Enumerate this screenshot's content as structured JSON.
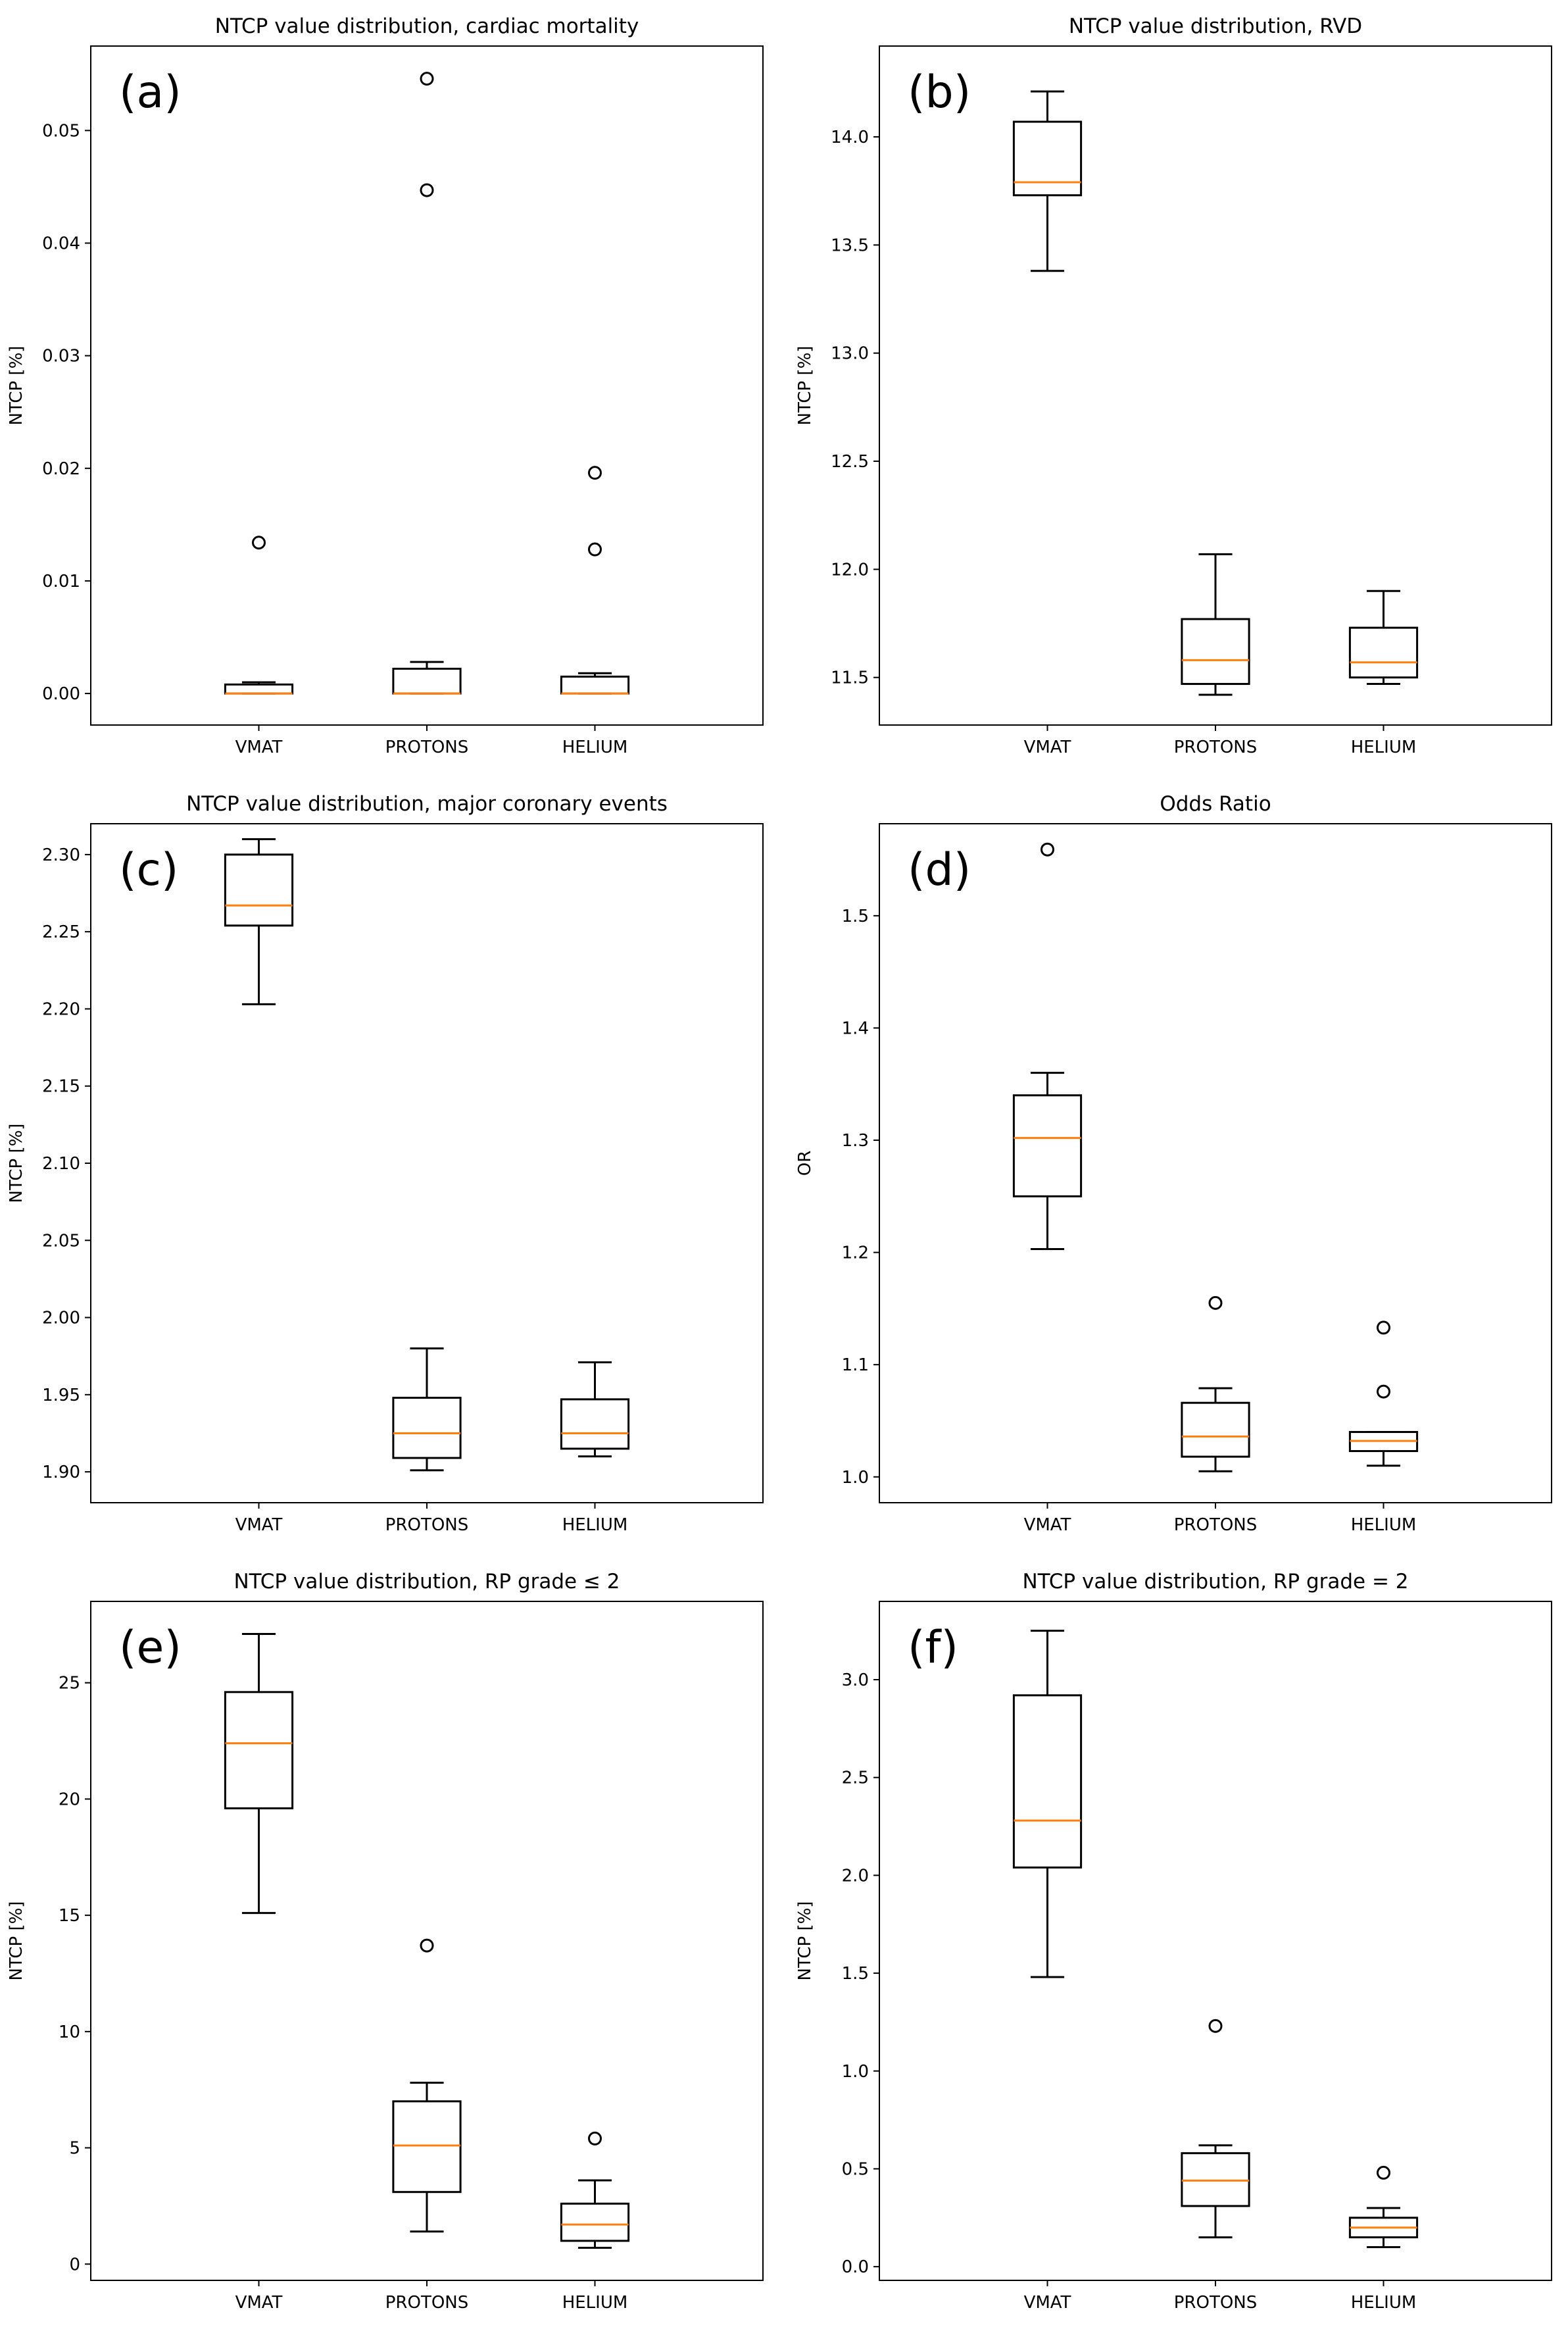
{
  "chart_data": [
    {
      "type": "box",
      "panel_label": "(a)",
      "title": "NTCP value distribution, cardiac mortality",
      "xlabel": "",
      "ylabel": "NTCP [%]",
      "ylim": [
        -0.0028,
        0.0575
      ],
      "yticks": [
        0.0,
        0.01,
        0.02,
        0.03,
        0.04,
        0.05
      ],
      "ytick_labels": [
        "0.00",
        "0.01",
        "0.02",
        "0.03",
        "0.04",
        "0.05"
      ],
      "categories": [
        "VMAT",
        "PROTONS",
        "HELIUM"
      ],
      "boxes": [
        {
          "label": "VMAT",
          "whislo": 0.0,
          "q1": 0.0,
          "med": 0.0,
          "q3": 0.0008,
          "whishi": 0.001,
          "fliers": [
            0.0134
          ]
        },
        {
          "label": "PROTONS",
          "whislo": 0.0,
          "q1": 0.0,
          "med": 0.0,
          "q3": 0.0022,
          "whishi": 0.0028,
          "fliers": [
            0.0546,
            0.0447
          ]
        },
        {
          "label": "HELIUM",
          "whislo": 0.0,
          "q1": 0.0,
          "med": 0.0,
          "q3": 0.0015,
          "whishi": 0.0018,
          "fliers": [
            0.0196,
            0.0128
          ]
        }
      ]
    },
    {
      "type": "box",
      "panel_label": "(b)",
      "title": "NTCP value distribution, RVD",
      "xlabel": "",
      "ylabel": "NTCP [%]",
      "ylim": [
        11.28,
        14.42
      ],
      "yticks": [
        11.5,
        12.0,
        12.5,
        13.0,
        13.5,
        14.0
      ],
      "ytick_labels": [
        "11.5",
        "12.0",
        "12.5",
        "13.0",
        "13.5",
        "14.0"
      ],
      "categories": [
        "VMAT",
        "PROTONS",
        "HELIUM"
      ],
      "boxes": [
        {
          "label": "VMAT",
          "whislo": 13.38,
          "q1": 13.73,
          "med": 13.79,
          "q3": 14.07,
          "whishi": 14.21,
          "fliers": []
        },
        {
          "label": "PROTONS",
          "whislo": 11.42,
          "q1": 11.47,
          "med": 11.58,
          "q3": 11.77,
          "whishi": 12.07,
          "fliers": []
        },
        {
          "label": "HELIUM",
          "whislo": 11.47,
          "q1": 11.5,
          "med": 11.57,
          "q3": 11.73,
          "whishi": 11.9,
          "fliers": []
        }
      ]
    },
    {
      "type": "box",
      "panel_label": "(c)",
      "title": "NTCP value distribution, major coronary events",
      "xlabel": "",
      "ylabel": "NTCP [%]",
      "ylim": [
        1.88,
        2.32
      ],
      "yticks": [
        1.9,
        1.95,
        2.0,
        2.05,
        2.1,
        2.15,
        2.2,
        2.25,
        2.3
      ],
      "ytick_labels": [
        "1.90",
        "1.95",
        "2.00",
        "2.05",
        "2.10",
        "2.15",
        "2.20",
        "2.25",
        "2.30"
      ],
      "categories": [
        "VMAT",
        "PROTONS",
        "HELIUM"
      ],
      "boxes": [
        {
          "label": "VMAT",
          "whislo": 2.203,
          "q1": 2.254,
          "med": 2.267,
          "q3": 2.3,
          "whishi": 2.31,
          "fliers": []
        },
        {
          "label": "PROTONS",
          "whislo": 1.901,
          "q1": 1.909,
          "med": 1.925,
          "q3": 1.948,
          "whishi": 1.98,
          "fliers": []
        },
        {
          "label": "HELIUM",
          "whislo": 1.91,
          "q1": 1.915,
          "med": 1.925,
          "q3": 1.947,
          "whishi": 1.971,
          "fliers": []
        }
      ]
    },
    {
      "type": "box",
      "panel_label": "(d)",
      "title": "Odds Ratio",
      "xlabel": "",
      "ylabel": "OR",
      "ylim": [
        0.977,
        1.582
      ],
      "yticks": [
        1.0,
        1.1,
        1.2,
        1.3,
        1.4,
        1.5
      ],
      "ytick_labels": [
        "1.0",
        "1.1",
        "1.2",
        "1.3",
        "1.4",
        "1.5"
      ],
      "categories": [
        "VMAT",
        "PROTONS",
        "HELIUM"
      ],
      "boxes": [
        {
          "label": "VMAT",
          "whislo": 1.203,
          "q1": 1.25,
          "med": 1.302,
          "q3": 1.34,
          "whishi": 1.36,
          "fliers": [
            1.559
          ]
        },
        {
          "label": "PROTONS",
          "whislo": 1.005,
          "q1": 1.018,
          "med": 1.036,
          "q3": 1.066,
          "whishi": 1.079,
          "fliers": [
            1.155
          ]
        },
        {
          "label": "HELIUM",
          "whislo": 1.01,
          "q1": 1.023,
          "med": 1.032,
          "q3": 1.04,
          "whishi": 1.04,
          "fliers": [
            1.133,
            1.076
          ]
        }
      ]
    },
    {
      "type": "box",
      "panel_label": "(e)",
      "title": "NTCP value distribution, RP grade ≤ 2",
      "xlabel": "",
      "ylabel": "NTCP [%]",
      "ylim": [
        -0.7,
        28.5
      ],
      "yticks": [
        0,
        5,
        10,
        15,
        20,
        25
      ],
      "ytick_labels": [
        "0",
        "5",
        "10",
        "15",
        "20",
        "25"
      ],
      "categories": [
        "VMAT",
        "PROTONS",
        "HELIUM"
      ],
      "boxes": [
        {
          "label": "VMAT",
          "whislo": 15.1,
          "q1": 19.6,
          "med": 22.4,
          "q3": 24.6,
          "whishi": 27.1,
          "fliers": []
        },
        {
          "label": "PROTONS",
          "whislo": 1.4,
          "q1": 3.1,
          "med": 5.1,
          "q3": 7.0,
          "whishi": 7.8,
          "fliers": [
            13.7
          ]
        },
        {
          "label": "HELIUM",
          "whislo": 0.7,
          "q1": 1.0,
          "med": 1.7,
          "q3": 2.6,
          "whishi": 3.6,
          "fliers": [
            5.4
          ]
        }
      ]
    },
    {
      "type": "box",
      "panel_label": "(f)",
      "title": "NTCP value distribution, RP grade = 2",
      "xlabel": "",
      "ylabel": "NTCP [%]",
      "ylim": [
        -0.07,
        3.4
      ],
      "yticks": [
        0.0,
        0.5,
        1.0,
        1.5,
        2.0,
        2.5,
        3.0
      ],
      "ytick_labels": [
        "0.0",
        "0.5",
        "1.0",
        "1.5",
        "2.0",
        "2.5",
        "3.0"
      ],
      "categories": [
        "VMAT",
        "PROTONS",
        "HELIUM"
      ],
      "boxes": [
        {
          "label": "VMAT",
          "whislo": 1.48,
          "q1": 2.04,
          "med": 2.28,
          "q3": 2.92,
          "whishi": 3.25,
          "fliers": []
        },
        {
          "label": "PROTONS",
          "whislo": 0.15,
          "q1": 0.31,
          "med": 0.44,
          "q3": 0.58,
          "whishi": 0.62,
          "fliers": [
            1.23
          ]
        },
        {
          "label": "HELIUM",
          "whislo": 0.1,
          "q1": 0.15,
          "med": 0.2,
          "q3": 0.25,
          "whishi": 0.3,
          "fliers": [
            0.48
          ]
        }
      ]
    }
  ],
  "colors": {
    "box_edge": "#000000",
    "median": "#ff7f0e",
    "background": "#ffffff"
  }
}
